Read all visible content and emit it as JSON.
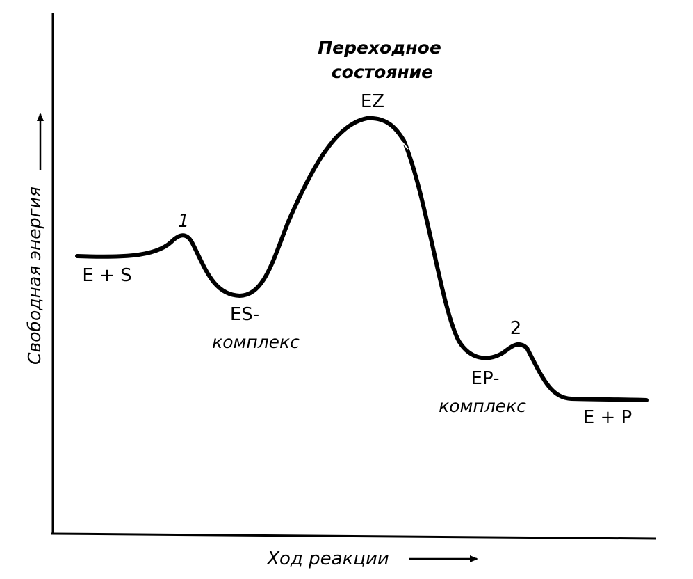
{
  "axes": {
    "x_label": "Ход реакции",
    "y_label": "Свободная энергия"
  },
  "transition_state": {
    "title_line1": "Переходное",
    "title_line2": "состояние",
    "symbol": "EZ"
  },
  "points": {
    "reactants": "E + S",
    "barrier_1": "1",
    "es_line1": "ES-",
    "es_line2": "комплекс",
    "barrier_2": "2",
    "ep_line1": "EP-",
    "ep_line2": "комплекс",
    "products": "E + P"
  },
  "colors": {
    "ink": "#000000",
    "background": "#ffffff"
  }
}
